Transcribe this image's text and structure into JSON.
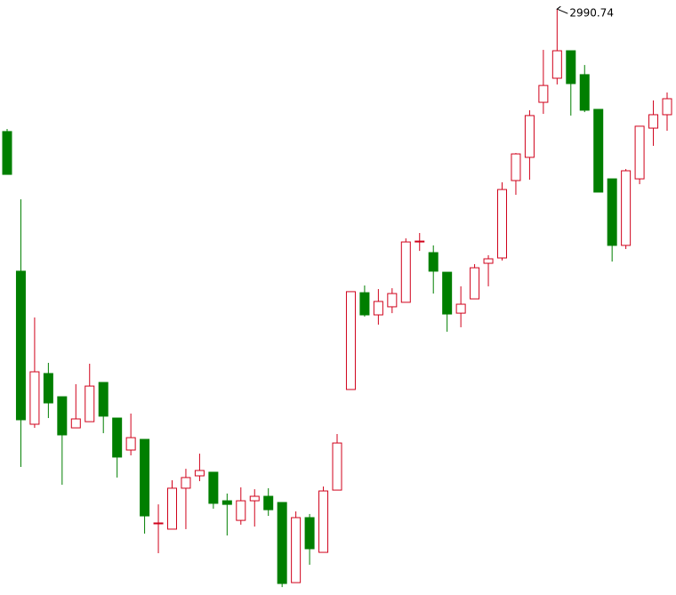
{
  "chart_data": {
    "type": "candlestick",
    "ylim": [
      2650,
      2996
    ],
    "up_color": "#d0021b",
    "down_color": "#007f00",
    "high_label": "2990.74",
    "open": [
      2919.5,
      2838.3,
      2749.3,
      2778.8,
      2765.3,
      2747.2,
      2750.8,
      2773.6,
      2752.9,
      2734.3,
      2740.5,
      2691.4,
      2688.3,
      2712.1,
      2719.3,
      2721.4,
      2704.8,
      2693.4,
      2704.8,
      2707.4,
      2703.8,
      2657.2,
      2695.0,
      2674.8,
      2711.0,
      2769.5,
      2825.8,
      2812.9,
      2817.6,
      2820.2,
      2855.3,
      2849.1,
      2837.7,
      2813.9,
      2822.2,
      2842.9,
      2846.0,
      2891.0,
      2904.5,
      2936.5,
      2950.5,
      2966.5,
      2952.6,
      2932.4,
      2892.0,
      2853.3,
      2892.0,
      2921.5,
      2929.3
    ],
    "high": [
      2921.0,
      2880.1,
      2811.4,
      2785.0,
      2765.3,
      2772.6,
      2784.5,
      2773.6,
      2752.9,
      2755.5,
      2740.5,
      2702.7,
      2716.7,
      2723.4,
      2732.2,
      2721.4,
      2709.0,
      2712.6,
      2711.5,
      2712.1,
      2703.8,
      2698.6,
      2697.1,
      2713.1,
      2743.6,
      2826.4,
      2830.0,
      2827.9,
      2828.4,
      2857.4,
      2860.5,
      2853.3,
      2837.7,
      2829.5,
      2842.4,
      2847.6,
      2890.0,
      2907.0,
      2931.9,
      2967.0,
      2990.74,
      2966.5,
      2958.2,
      2932.4,
      2892.0,
      2897.7,
      2922.6,
      2937.6,
      2942.2
    ],
    "low": [
      2894.6,
      2724.5,
      2747.2,
      2752.9,
      2714.1,
      2747.2,
      2750.8,
      2744.1,
      2718.3,
      2731.2,
      2685.7,
      2674.3,
      2688.3,
      2688.3,
      2716.2,
      2700.2,
      2684.6,
      2690.9,
      2689.8,
      2696.0,
      2654.6,
      2657.2,
      2667.6,
      2674.8,
      2711.0,
      2769.5,
      2811.9,
      2807.2,
      2813.9,
      2820.2,
      2850.1,
      2825.3,
      2803.1,
      2805.7,
      2822.2,
      2829.5,
      2844.5,
      2882.7,
      2891.5,
      2929.8,
      2946.9,
      2928.8,
      2930.8,
      2884.3,
      2843.9,
      2851.2,
      2888.9,
      2911.2,
      2920.0
    ],
    "close": [
      2894.6,
      2751.9,
      2779.8,
      2761.7,
      2743.1,
      2752.4,
      2771.5,
      2754.0,
      2730.2,
      2741.5,
      2696.0,
      2691.9,
      2712.1,
      2718.3,
      2722.4,
      2703.3,
      2702.7,
      2704.8,
      2707.4,
      2699.6,
      2656.7,
      2695.0,
      2676.9,
      2710.5,
      2738.4,
      2826.4,
      2812.9,
      2820.7,
      2825.3,
      2855.3,
      2855.8,
      2838.3,
      2813.4,
      2819.1,
      2840.3,
      2845.5,
      2885.8,
      2906.5,
      2928.8,
      2946.3,
      2966.5,
      2947.4,
      2931.9,
      2884.3,
      2853.3,
      2896.7,
      2922.6,
      2929.3,
      2938.6
    ]
  }
}
